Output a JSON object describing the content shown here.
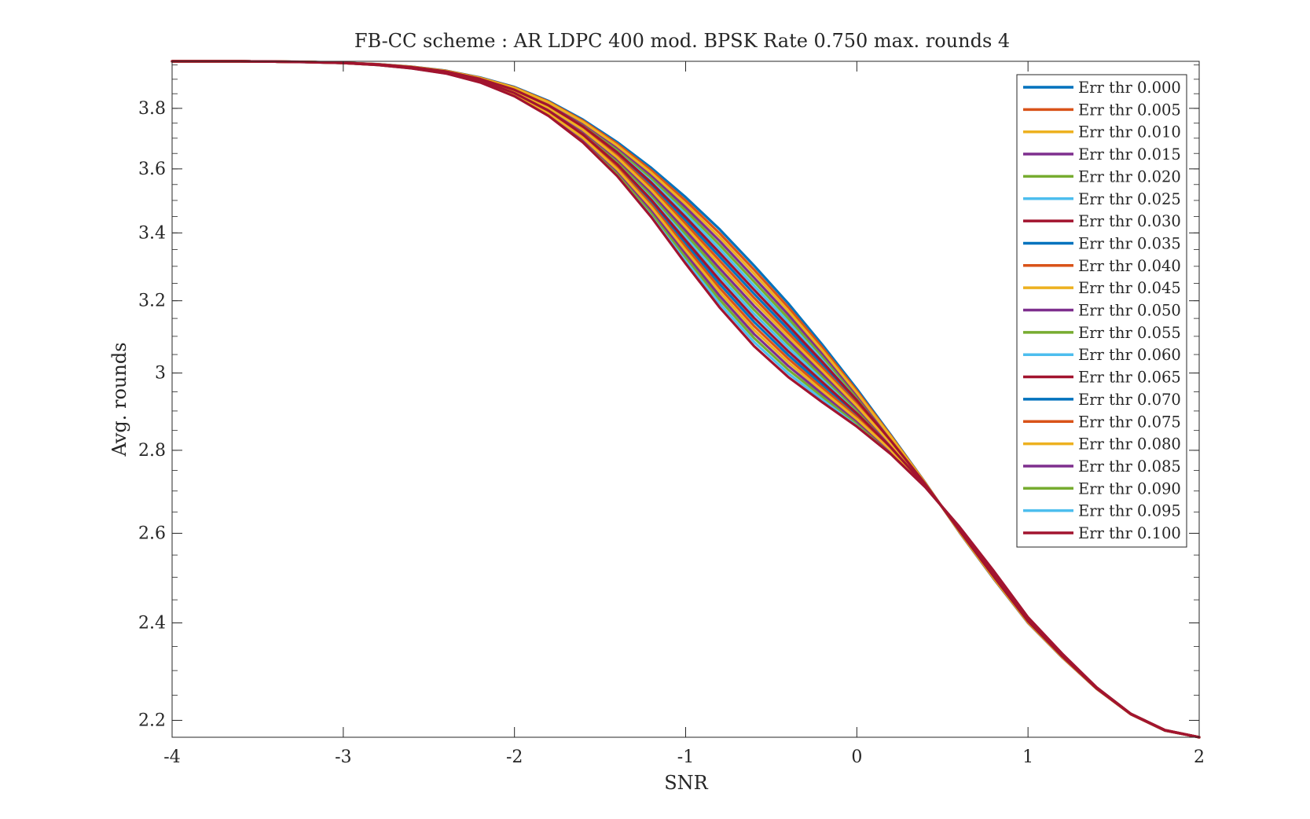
{
  "chart_data": {
    "type": "line",
    "title": "FB-CC scheme : AR LDPC 400 mod. BPSK Rate 0.750 max. rounds 4",
    "xlabel": "SNR",
    "ylabel": "Avg. rounds",
    "xlim": [
      -4,
      2
    ],
    "ylim": [
      2.167,
      3.963
    ],
    "y_scale": "log",
    "grid": false,
    "legend_position": "top-right",
    "x_ticks": [
      "-4",
      "-3",
      "-2",
      "-1",
      "0",
      "1",
      "2"
    ],
    "y_ticks": [
      "2.2",
      "2.4",
      "2.6",
      "2.8",
      "3",
      "3.2",
      "3.4",
      "3.6",
      "3.8"
    ],
    "x": [
      -4,
      -3.8,
      -3.6,
      -3.4,
      -3.2,
      -3,
      -2.8,
      -2.6,
      -2.4,
      -2.2,
      -2,
      -1.8,
      -1.6,
      -1.4,
      -1.2,
      -1,
      -0.8,
      -0.6,
      -0.4,
      -0.2,
      0,
      0.2,
      0.4,
      0.6,
      0.8,
      1,
      1.2,
      1.4,
      1.6,
      1.8,
      2
    ],
    "series_top": [
      3.963,
      3.963,
      3.963,
      3.962,
      3.961,
      3.958,
      3.953,
      3.944,
      3.93,
      3.906,
      3.873,
      3.825,
      3.762,
      3.687,
      3.603,
      3.51,
      3.41,
      3.302,
      3.192,
      3.076,
      2.958,
      2.838,
      2.72,
      2.602,
      2.496,
      2.4,
      2.327,
      2.263,
      2.212,
      2.18,
      2.167
    ],
    "series_bottom": [
      3.963,
      3.963,
      3.963,
      3.962,
      3.96,
      3.957,
      3.95,
      3.938,
      3.92,
      3.889,
      3.841,
      3.774,
      3.686,
      3.577,
      3.448,
      3.308,
      3.18,
      3.073,
      2.989,
      2.922,
      2.86,
      2.79,
      2.709,
      2.615,
      2.514,
      2.412,
      2.335,
      2.266,
      2.213,
      2.181,
      2.167
    ],
    "series": [
      {
        "name": "Err thr 0.000",
        "color": "#0072BD"
      },
      {
        "name": "Err thr 0.005",
        "color": "#D95319"
      },
      {
        "name": "Err thr 0.010",
        "color": "#EDB120"
      },
      {
        "name": "Err thr 0.015",
        "color": "#7E2F8E"
      },
      {
        "name": "Err thr 0.020",
        "color": "#77AC30"
      },
      {
        "name": "Err thr 0.025",
        "color": "#4DBEEE"
      },
      {
        "name": "Err thr 0.030",
        "color": "#A2142F"
      },
      {
        "name": "Err thr 0.035",
        "color": "#0072BD"
      },
      {
        "name": "Err thr 0.040",
        "color": "#D95319"
      },
      {
        "name": "Err thr 0.045",
        "color": "#EDB120"
      },
      {
        "name": "Err thr 0.050",
        "color": "#7E2F8E"
      },
      {
        "name": "Err thr 0.055",
        "color": "#77AC30"
      },
      {
        "name": "Err thr 0.060",
        "color": "#4DBEEE"
      },
      {
        "name": "Err thr 0.065",
        "color": "#A2142F"
      },
      {
        "name": "Err thr 0.070",
        "color": "#0072BD"
      },
      {
        "name": "Err thr 0.075",
        "color": "#D95319"
      },
      {
        "name": "Err thr 0.080",
        "color": "#EDB120"
      },
      {
        "name": "Err thr 0.085",
        "color": "#7E2F8E"
      },
      {
        "name": "Err thr 0.090",
        "color": "#77AC30"
      },
      {
        "name": "Err thr 0.095",
        "color": "#4DBEEE"
      },
      {
        "name": "Err thr 0.100",
        "color": "#A2142F"
      }
    ],
    "draw_order": [
      0,
      7,
      14,
      1,
      8,
      15,
      5,
      12,
      19,
      4,
      11,
      18,
      3,
      10,
      17,
      2,
      9,
      16,
      6,
      13,
      20
    ]
  }
}
